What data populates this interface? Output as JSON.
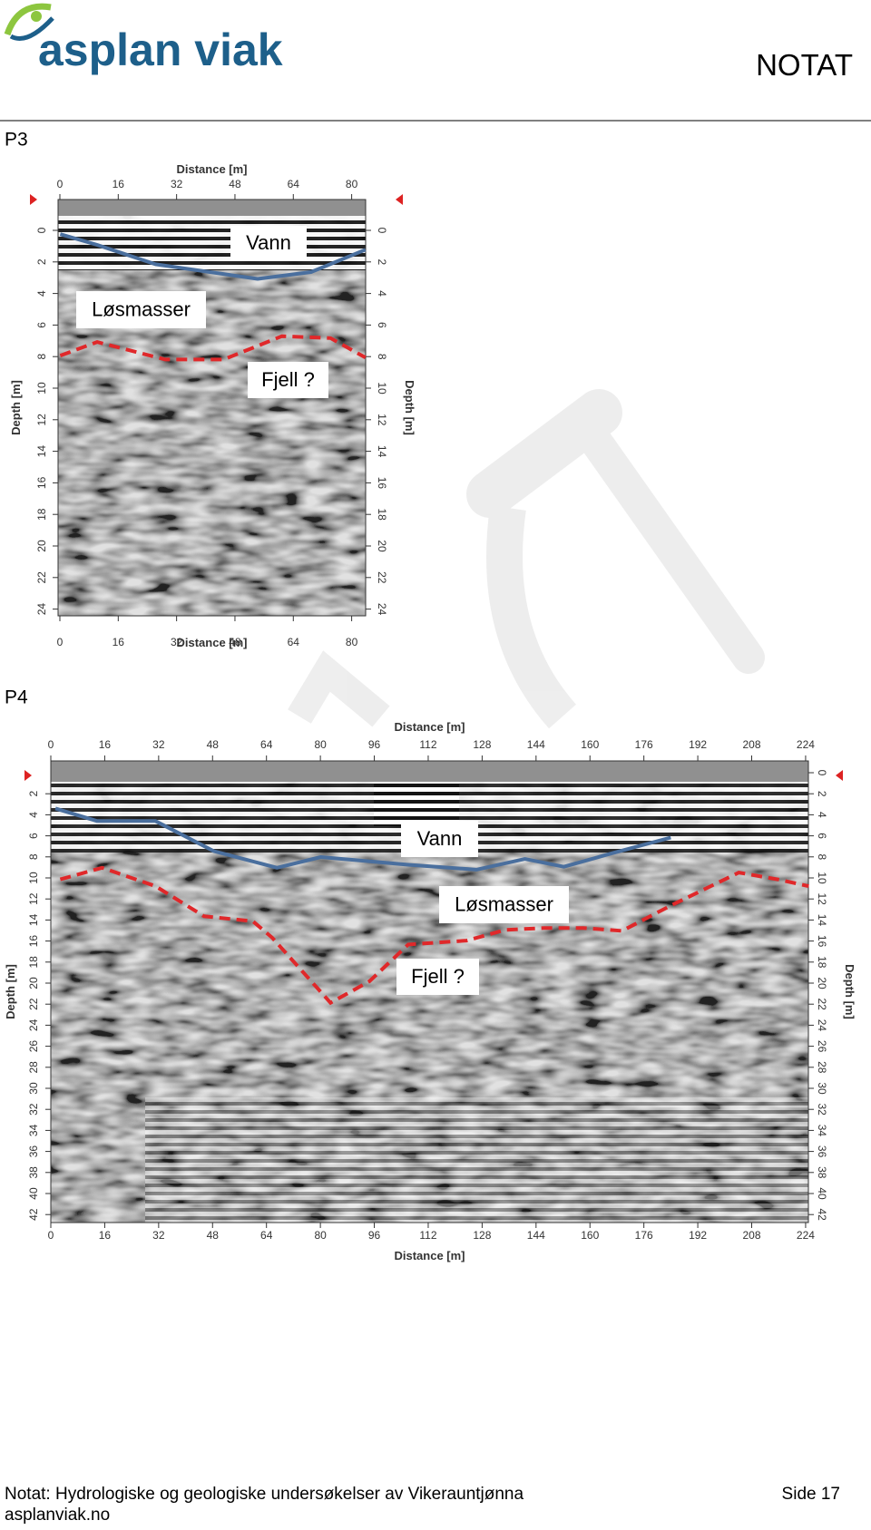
{
  "header": {
    "logo": "asplan viak",
    "doc_type": "NOTAT"
  },
  "figures": [
    {
      "label": "P3",
      "axis_title_x": "Distance [m]",
      "axis_title_y_left": "Depth [m]",
      "axis_title_y_right": "Depth [m]",
      "x_ticks": [
        0,
        16,
        32,
        48,
        64,
        80
      ],
      "depth_ticks_left": [
        0,
        2,
        4,
        6,
        8,
        10,
        12,
        14,
        16,
        18,
        20,
        22,
        24
      ],
      "depth_ticks_right": [
        0,
        2,
        4,
        6,
        8,
        10,
        12,
        14,
        16,
        18,
        20,
        22,
        24
      ],
      "annotations": [
        "Vann",
        "Løsmasser",
        "Fjell ?"
      ]
    },
    {
      "label": "P4",
      "axis_title_x": "Distance [m]",
      "axis_title_y_left": "Depth [m]",
      "axis_title_y_right": "Depth [m]",
      "x_ticks": [
        0,
        16,
        32,
        48,
        64,
        80,
        96,
        112,
        128,
        144,
        160,
        176,
        192,
        208,
        224
      ],
      "depth_ticks_left": [
        2,
        4,
        6,
        8,
        10,
        12,
        14,
        16,
        18,
        20,
        22,
        24,
        26,
        28,
        30,
        32,
        34,
        36,
        38,
        40,
        42
      ],
      "depth_ticks_right": [
        0,
        2,
        4,
        6,
        8,
        10,
        12,
        14,
        16,
        18,
        20,
        22,
        24,
        26,
        28,
        30,
        32,
        34,
        36,
        38,
        40,
        42
      ],
      "annotations": [
        "Vann",
        "Løsmasser",
        "Fjell ?"
      ]
    }
  ],
  "footer": {
    "text": "Notat: Hydrologiske og geologiske undersøkelser  av Vikerauntjønna",
    "page": "Side 17",
    "site": "asplanviak.no"
  }
}
